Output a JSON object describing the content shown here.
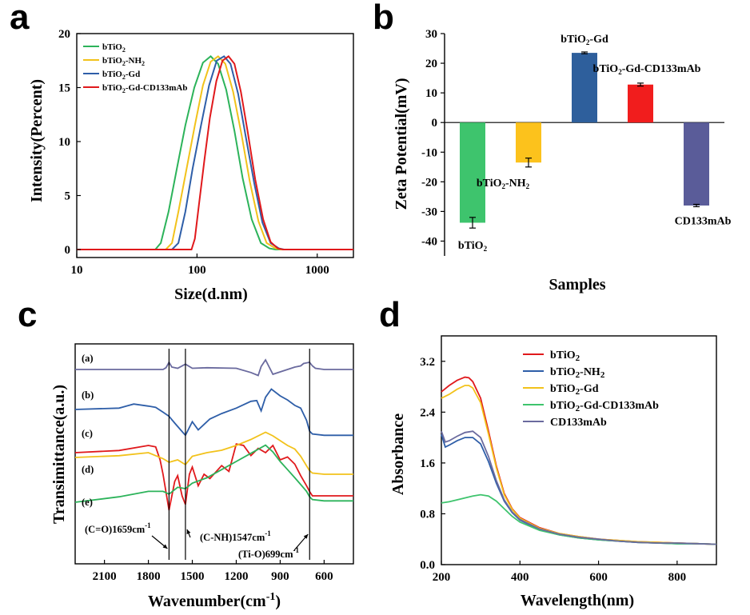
{
  "panels": {
    "a": "a",
    "b": "b",
    "c": "c",
    "d": "d"
  },
  "chart_data": [
    {
      "panel": "a",
      "type": "line",
      "xlabel": "Size(d.nm)",
      "ylabel": "Intensity(Percent)",
      "xscale": "log",
      "xlim": [
        10,
        2000
      ],
      "ylim": [
        0,
        20
      ],
      "xticks": [
        "10",
        "100",
        "1000"
      ],
      "xtick_values": [
        10,
        100,
        1000
      ],
      "yticks": [
        "0",
        "5",
        "10",
        "15",
        "20"
      ],
      "ytick_values": [
        0,
        5,
        10,
        15,
        20
      ],
      "legend": [
        {
          "base": "bTiO",
          "sub": "2",
          "rest": ""
        },
        {
          "base": "bTiO",
          "sub": "2",
          "rest": "-NH",
          "sub2": "2"
        },
        {
          "base": "bTiO",
          "sub": "2",
          "rest": "-Gd"
        },
        {
          "base": "bTiO",
          "sub": "2",
          "rest": "-Gd-CD133mAb"
        }
      ],
      "series": [
        {
          "color": "#2cb35a",
          "x": [
            10,
            45,
            50,
            58,
            68,
            80,
            95,
            112,
            130,
            150,
            175,
            205,
            240,
            285,
            340,
            400,
            450,
            2000
          ],
          "y": [
            0,
            0,
            0.6,
            3.5,
            7.5,
            11.5,
            15.0,
            17.3,
            17.9,
            17.2,
            14.8,
            11.0,
            6.6,
            2.8,
            0.6,
            0.1,
            0,
            0
          ]
        },
        {
          "color": "#f2c21b",
          "x": [
            10,
            55,
            62,
            70,
            82,
            96,
            112,
            130,
            150,
            172,
            200,
            235,
            275,
            325,
            380,
            450,
            500,
            2000
          ],
          "y": [
            0,
            0,
            0.6,
            3.5,
            7.5,
            11.5,
            15.2,
            17.4,
            17.9,
            17.2,
            14.6,
            10.6,
            6.3,
            2.6,
            0.6,
            0.1,
            0,
            0
          ]
        },
        {
          "color": "#2e5ea8",
          "x": [
            10,
            62,
            70,
            80,
            92,
            108,
            126,
            146,
            168,
            190,
            220,
            255,
            300,
            350,
            410,
            480,
            530,
            2000
          ],
          "y": [
            0,
            0,
            0.6,
            3.5,
            7.5,
            11.5,
            15.2,
            17.5,
            17.9,
            17.2,
            14.4,
            10.4,
            6.1,
            2.5,
            0.6,
            0.1,
            0,
            0
          ]
        },
        {
          "color": "#e0191c",
          "x": [
            10,
            90,
            96,
            104,
            115,
            128,
            145,
            163,
            183,
            205,
            232,
            265,
            305,
            355,
            410,
            470,
            520,
            2000
          ],
          "y": [
            0,
            0,
            1.0,
            4.2,
            8.2,
            12.2,
            15.6,
            17.5,
            17.9,
            17.2,
            14.6,
            10.8,
            6.5,
            2.8,
            0.7,
            0.1,
            0,
            0
          ]
        }
      ]
    },
    {
      "panel": "b",
      "type": "bar",
      "xlabel": "Samples",
      "ylabel": "Zeta Potential(mV)",
      "ylim": [
        -45,
        30
      ],
      "yticks": [
        "-40",
        "-30",
        "-20",
        "-10",
        "0",
        "10",
        "20",
        "30"
      ],
      "ytick_values": [
        -40,
        -30,
        -20,
        -10,
        0,
        10,
        20,
        30
      ],
      "categories": [
        {
          "base": "bTiO",
          "sub": "2",
          "rest": ""
        },
        {
          "base": "bTiO",
          "sub": "2",
          "rest": "-NH",
          "sub2": "2"
        },
        {
          "base": "bTiO",
          "sub": "2",
          "rest": "-Gd"
        },
        {
          "base": "bTiO",
          "sub": "2",
          "rest": "-Gd-CD133mAb"
        },
        {
          "base": "CD133mAb",
          "sub": "",
          "rest": ""
        }
      ],
      "values": [
        -33.8,
        -13.5,
        23.5,
        12.8,
        -28.0
      ],
      "errors": [
        1.8,
        1.5,
        0.3,
        0.5,
        0.4
      ],
      "colors": [
        "#3ec46d",
        "#fcc21c",
        "#2e5f9c",
        "#f11d1d",
        "#5a5c99"
      ]
    },
    {
      "panel": "c",
      "type": "line",
      "xlabel": "Wavenumber(cm",
      "xlabel_sup": "-1",
      "xlabel_close": ")",
      "ylabel": "Transimittance(a.u.)",
      "xlim": [
        2300,
        400
      ],
      "xticks": [
        "2100",
        "1800",
        "1500",
        "1200",
        "900",
        "600"
      ],
      "xtick_values": [
        2100,
        1800,
        1500,
        1200,
        900,
        600
      ],
      "curve_labels": [
        "(a)",
        "(b)",
        "(c)",
        "(d)",
        "(e)"
      ],
      "ref_lines": [
        1659,
        1547,
        699
      ],
      "annotations": [
        {
          "base": "(C=O)1659cm",
          "sup": "-1"
        },
        {
          "base": "(C-NH)1547cm",
          "sup": "-1"
        },
        {
          "base": "(Ti-O)699cm",
          "sup": "-1"
        }
      ],
      "series": [
        {
          "label": "(a)",
          "color": "#6a6a9e",
          "offset": 0.0,
          "x": [
            2300,
            1700,
            1680,
            1659,
            1640,
            1600,
            1547,
            1500,
            1400,
            1200,
            1100,
            1050,
            1030,
            1000,
            950,
            900,
            850,
            800,
            760,
            740,
            700,
            680,
            660,
            600,
            400
          ],
          "y": [
            0,
            0,
            0.3,
            1.2,
            0.4,
            0.2,
            0.9,
            0.2,
            0.3,
            0.2,
            -0.5,
            -1.0,
            0.5,
            1.6,
            -0.8,
            -0.4,
            0.0,
            0.4,
            0.6,
            1.0,
            1.2,
            0.6,
            0.2,
            0.0,
            0
          ]
        },
        {
          "label": "(b)",
          "color": "#2e5ea8",
          "offset": 0.0,
          "x": [
            2300,
            2000,
            1900,
            1800,
            1750,
            1700,
            1659,
            1620,
            1580,
            1547,
            1500,
            1460,
            1420,
            1380,
            1300,
            1200,
            1100,
            1060,
            1030,
            1000,
            960,
            900,
            850,
            800,
            760,
            720,
            699,
            680,
            600,
            400
          ],
          "y": [
            0,
            0.2,
            0.8,
            0.5,
            0.3,
            -0.4,
            -1.0,
            -2.0,
            -3.0,
            -3.8,
            -1.8,
            -3.0,
            -2.2,
            -1.4,
            -0.6,
            0.2,
            1.2,
            1.3,
            -0.2,
            1.8,
            3.0,
            2.0,
            1.4,
            0.6,
            0.2,
            -1.6,
            -3.2,
            -3.6,
            -3.8,
            -3.8
          ]
        },
        {
          "label": "(c)",
          "color": "#e0191c",
          "offset": 0.0,
          "x": [
            2300,
            2000,
            1800,
            1750,
            1720,
            1700,
            1659,
            1620,
            1600,
            1570,
            1547,
            1520,
            1500,
            1460,
            1420,
            1380,
            1300,
            1250,
            1200,
            1150,
            1100,
            1050,
            1000,
            950,
            900,
            850,
            800,
            760,
            720,
            699,
            680,
            600,
            400
          ],
          "y": [
            0,
            0.3,
            1.0,
            0.8,
            -1.0,
            -3.0,
            -8.0,
            -4.0,
            -3.2,
            -6.0,
            -7.2,
            -3.0,
            -2.0,
            -4.6,
            -3.0,
            -3.6,
            -1.8,
            -2.6,
            1.2,
            1.0,
            -0.4,
            0.6,
            0.0,
            1.0,
            -1.0,
            -0.6,
            -1.6,
            -3.2,
            -4.6,
            -5.4,
            -6.0,
            -6.0,
            -6.0
          ]
        },
        {
          "label": "(d)",
          "color": "#f2c21b",
          "offset": 0.0,
          "x": [
            2300,
            2000,
            1800,
            1700,
            1659,
            1600,
            1547,
            1500,
            1400,
            1300,
            1200,
            1100,
            1000,
            950,
            900,
            850,
            800,
            760,
            720,
            699,
            680,
            600,
            400
          ],
          "y": [
            0,
            0.3,
            0.8,
            -0.2,
            -0.8,
            -0.4,
            -1.2,
            0.2,
            0.8,
            1.2,
            2.0,
            3.0,
            4.2,
            3.6,
            2.8,
            2.0,
            1.4,
            0.2,
            -1.4,
            -2.2,
            -2.6,
            -2.8,
            -2.8
          ]
        },
        {
          "label": "(e)",
          "color": "#2cb35a",
          "offset": 0.0,
          "x": [
            2300,
            2000,
            1800,
            1700,
            1659,
            1600,
            1547,
            1500,
            1400,
            1300,
            1200,
            1100,
            1000,
            950,
            900,
            850,
            800,
            760,
            720,
            699,
            680,
            600,
            400
          ],
          "y": [
            0,
            0.8,
            1.6,
            1.6,
            1.2,
            2.2,
            2.0,
            2.8,
            3.6,
            4.8,
            6.0,
            7.2,
            8.4,
            7.4,
            6.0,
            4.8,
            3.6,
            2.6,
            1.6,
            0.8,
            0.4,
            0.2,
            0.2
          ]
        }
      ]
    },
    {
      "panel": "d",
      "type": "line",
      "xlabel": "Wavelength(nm)",
      "ylabel": "Absorbance",
      "xlim": [
        200,
        900
      ],
      "ylim": [
        0,
        3.6
      ],
      "xticks": [
        "200",
        "400",
        "600",
        "800"
      ],
      "xtick_values": [
        200,
        400,
        600,
        800
      ],
      "yticks": [
        "0.0",
        "0.8",
        "1.6",
        "2.4",
        "3.2"
      ],
      "ytick_values": [
        0.0,
        0.8,
        1.6,
        2.4,
        3.2
      ],
      "legend": [
        {
          "base": "bTiO",
          "sub": "2",
          "rest": ""
        },
        {
          "base": "bTiO",
          "sub": "2",
          "rest": "-NH",
          "sub2": "2"
        },
        {
          "base": "bTiO",
          "sub": "2",
          "rest": "-Gd"
        },
        {
          "base": "bTiO",
          "sub": "2",
          "rest": "-Gd-CD133mAb"
        },
        {
          "base": "CD133mAb",
          "sub": "",
          "rest": ""
        }
      ],
      "series": [
        {
          "color": "#e0191c",
          "x": [
            200,
            220,
            240,
            260,
            270,
            280,
            300,
            320,
            340,
            360,
            380,
            400,
            450,
            500,
            550,
            600,
            650,
            700,
            750,
            800,
            850,
            900
          ],
          "y": [
            2.72,
            2.82,
            2.9,
            2.95,
            2.94,
            2.88,
            2.62,
            2.1,
            1.55,
            1.12,
            0.88,
            0.74,
            0.58,
            0.49,
            0.44,
            0.4,
            0.38,
            0.36,
            0.35,
            0.34,
            0.33,
            0.32
          ]
        },
        {
          "color": "#2e5ea8",
          "x": [
            200,
            210,
            220,
            240,
            260,
            280,
            300,
            320,
            340,
            360,
            380,
            400,
            450,
            500,
            550,
            600,
            650,
            700,
            750,
            800,
            850,
            900
          ],
          "y": [
            2.05,
            1.85,
            1.88,
            1.95,
            2.0,
            2.0,
            1.9,
            1.62,
            1.28,
            1.0,
            0.82,
            0.7,
            0.55,
            0.47,
            0.42,
            0.39,
            0.37,
            0.35,
            0.34,
            0.33,
            0.33,
            0.32
          ]
        },
        {
          "color": "#f2c21b",
          "x": [
            200,
            220,
            240,
            260,
            270,
            280,
            300,
            320,
            340,
            360,
            380,
            400,
            450,
            500,
            550,
            600,
            650,
            700,
            750,
            800,
            850,
            900
          ],
          "y": [
            2.62,
            2.68,
            2.76,
            2.82,
            2.82,
            2.78,
            2.55,
            2.05,
            1.52,
            1.1,
            0.87,
            0.73,
            0.57,
            0.49,
            0.44,
            0.4,
            0.38,
            0.36,
            0.35,
            0.34,
            0.33,
            0.32
          ]
        },
        {
          "color": "#3ec46d",
          "x": [
            200,
            220,
            240,
            260,
            280,
            300,
            320,
            340,
            360,
            380,
            400,
            450,
            500,
            550,
            600,
            650,
            700,
            750,
            800,
            850,
            900
          ],
          "y": [
            0.97,
            0.99,
            1.02,
            1.05,
            1.08,
            1.1,
            1.08,
            1.0,
            0.88,
            0.76,
            0.67,
            0.54,
            0.47,
            0.42,
            0.39,
            0.37,
            0.35,
            0.34,
            0.33,
            0.33,
            0.32
          ]
        },
        {
          "color": "#6a6a9e",
          "x": [
            200,
            210,
            220,
            240,
            260,
            280,
            300,
            320,
            340,
            360,
            380,
            400,
            450,
            500,
            550,
            600,
            650,
            700,
            750,
            800,
            850,
            900
          ],
          "y": [
            2.1,
            1.93,
            1.95,
            2.02,
            2.08,
            2.1,
            2.0,
            1.7,
            1.32,
            1.02,
            0.83,
            0.71,
            0.56,
            0.48,
            0.43,
            0.4,
            0.37,
            0.35,
            0.34,
            0.34,
            0.33,
            0.32
          ]
        }
      ]
    }
  ]
}
